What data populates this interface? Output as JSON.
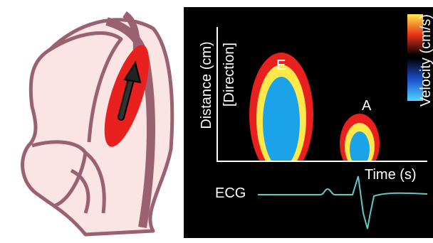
{
  "axis": {
    "y_title": "Distance (cm)",
    "y_subtitle": "[Direction]",
    "x_title": "Time (s)"
  },
  "waves": [
    {
      "label": "E"
    },
    {
      "label": "A"
    }
  ],
  "ecg_label": "ECG",
  "colorbar_label": "Velocity (cm/s)"
}
